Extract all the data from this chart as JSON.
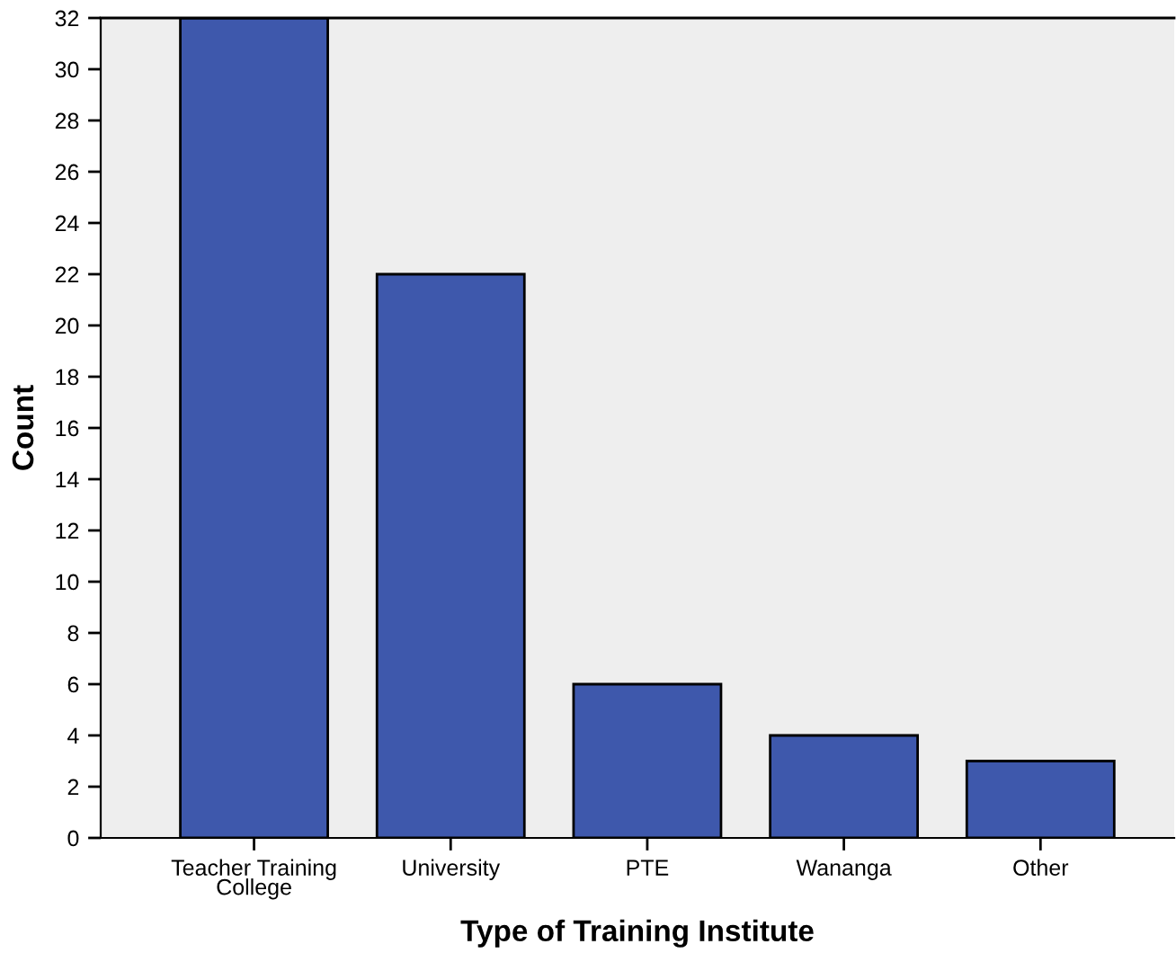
{
  "chart_data": {
    "type": "bar",
    "xlabel": "Type of Training Institute",
    "ylabel": "Count",
    "categories": [
      "Teacher Training\nCollege",
      "University",
      "PTE",
      "Wananga",
      "Other"
    ],
    "values": [
      32,
      22,
      6,
      4,
      3
    ],
    "color": "#3e58ac",
    "ylim": [
      0,
      32
    ],
    "yticks": [
      0,
      2,
      4,
      6,
      8,
      10,
      12,
      14,
      16,
      18,
      20,
      22,
      24,
      26,
      28,
      30,
      32
    ],
    "grid": false
  }
}
